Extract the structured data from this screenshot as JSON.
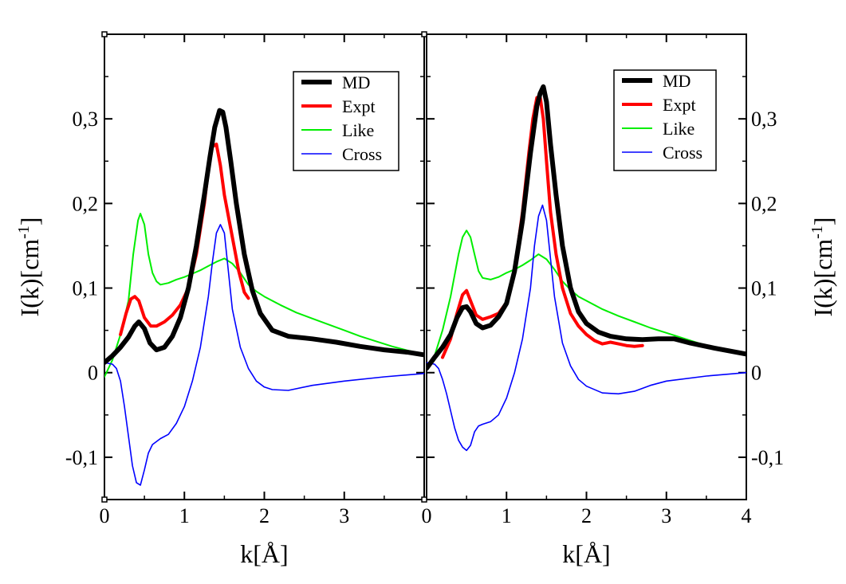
{
  "colors": {
    "MD": "#000000",
    "Expt": "#ff0000",
    "Like": "#00ee00",
    "Cross": "#0000ff"
  },
  "chart_data": [
    {
      "type": "line",
      "xlabel": "k[Å]",
      "ylabel": "I(k)[cm",
      "ylabel_sup": "-1",
      "xlim": [
        0,
        4
      ],
      "ylim": [
        -0.15,
        0.4
      ],
      "xticks": [
        "0",
        "1",
        "2",
        "3"
      ],
      "yticks": [
        "-0,1",
        "0",
        "0,1",
        "0,2",
        "0,3"
      ],
      "legend": [
        "MD",
        "Expt",
        "Like",
        "Cross"
      ],
      "series": [
        {
          "name": "MD",
          "x": [
            0,
            0.1,
            0.2,
            0.3,
            0.38,
            0.43,
            0.5,
            0.57,
            0.65,
            0.75,
            0.85,
            0.95,
            1.05,
            1.15,
            1.25,
            1.32,
            1.38,
            1.44,
            1.48,
            1.52,
            1.58,
            1.65,
            1.75,
            1.85,
            1.95,
            2.1,
            2.3,
            2.6,
            2.9,
            3.2,
            3.5,
            3.8,
            4.0
          ],
          "y": [
            0.012,
            0.02,
            0.03,
            0.042,
            0.055,
            0.06,
            0.052,
            0.035,
            0.027,
            0.03,
            0.043,
            0.065,
            0.1,
            0.15,
            0.21,
            0.255,
            0.29,
            0.31,
            0.308,
            0.29,
            0.25,
            0.2,
            0.14,
            0.097,
            0.07,
            0.05,
            0.043,
            0.04,
            0.036,
            0.031,
            0.027,
            0.024,
            0.021
          ]
        },
        {
          "name": "Expt",
          "x": [
            0.2,
            0.27,
            0.33,
            0.38,
            0.43,
            0.5,
            0.58,
            0.65,
            0.75,
            0.85,
            0.95,
            1.05,
            1.15,
            1.25,
            1.3,
            1.35,
            1.4,
            1.45,
            1.5,
            1.55,
            1.6,
            1.68,
            1.75,
            1.8
          ],
          "y": [
            0.045,
            0.07,
            0.087,
            0.09,
            0.085,
            0.065,
            0.055,
            0.055,
            0.06,
            0.068,
            0.08,
            0.1,
            0.14,
            0.2,
            0.24,
            0.267,
            0.27,
            0.245,
            0.21,
            0.185,
            0.16,
            0.12,
            0.095,
            0.088
          ]
        },
        {
          "name": "Like",
          "x": [
            0,
            0.1,
            0.2,
            0.3,
            0.36,
            0.42,
            0.45,
            0.5,
            0.55,
            0.6,
            0.65,
            0.7,
            0.8,
            0.9,
            1.0,
            1.1,
            1.2,
            1.3,
            1.4,
            1.5,
            1.6,
            1.7,
            1.8,
            1.9,
            2.0,
            2.2,
            2.4,
            2.6,
            2.8,
            3.0,
            3.2,
            3.4,
            3.6,
            3.8,
            4.0
          ],
          "y": [
            -0.005,
            0.015,
            0.045,
            0.085,
            0.14,
            0.18,
            0.188,
            0.175,
            0.14,
            0.118,
            0.108,
            0.104,
            0.106,
            0.11,
            0.113,
            0.117,
            0.121,
            0.126,
            0.131,
            0.135,
            0.129,
            0.118,
            0.104,
            0.096,
            0.09,
            0.08,
            0.071,
            0.064,
            0.057,
            0.05,
            0.043,
            0.037,
            0.031,
            0.026,
            0.022
          ]
        },
        {
          "name": "Cross",
          "x": [
            0,
            0.1,
            0.15,
            0.2,
            0.25,
            0.3,
            0.35,
            0.4,
            0.45,
            0.5,
            0.55,
            0.6,
            0.7,
            0.8,
            0.9,
            1.0,
            1.1,
            1.2,
            1.3,
            1.35,
            1.4,
            1.45,
            1.5,
            1.55,
            1.6,
            1.7,
            1.8,
            1.9,
            2.0,
            2.1,
            2.3,
            2.6,
            3.0,
            3.5,
            4.0
          ],
          "y": [
            0.012,
            0.01,
            0.005,
            -0.01,
            -0.04,
            -0.075,
            -0.11,
            -0.13,
            -0.133,
            -0.115,
            -0.095,
            -0.085,
            -0.078,
            -0.073,
            -0.06,
            -0.04,
            -0.01,
            0.03,
            0.09,
            0.13,
            0.165,
            0.175,
            0.165,
            0.12,
            0.075,
            0.03,
            0.005,
            -0.01,
            -0.017,
            -0.02,
            -0.021,
            -0.015,
            -0.01,
            -0.005,
            -0.001
          ]
        }
      ]
    },
    {
      "type": "line",
      "xlabel": "k[Å]",
      "ylabel": "I(k)[cm",
      "ylabel_sup": "-1",
      "xlim": [
        0,
        4
      ],
      "ylim": [
        -0.15,
        0.4
      ],
      "xticks": [
        "0",
        "1",
        "2",
        "3",
        "4"
      ],
      "yticks": [
        "-0,1",
        "0",
        "0,1",
        "0,2",
        "0,3"
      ],
      "legend": [
        "MD",
        "Expt",
        "Like",
        "Cross"
      ],
      "series": [
        {
          "name": "MD",
          "x": [
            0,
            0.1,
            0.2,
            0.3,
            0.38,
            0.45,
            0.5,
            0.55,
            0.62,
            0.7,
            0.8,
            0.9,
            1.0,
            1.1,
            1.2,
            1.3,
            1.38,
            1.42,
            1.46,
            1.5,
            1.55,
            1.62,
            1.7,
            1.8,
            1.9,
            2.0,
            2.15,
            2.3,
            2.5,
            2.7,
            2.9,
            3.1,
            3.3,
            3.6,
            4.0
          ],
          "y": [
            0.005,
            0.018,
            0.03,
            0.045,
            0.065,
            0.077,
            0.078,
            0.072,
            0.058,
            0.053,
            0.056,
            0.066,
            0.082,
            0.12,
            0.18,
            0.26,
            0.315,
            0.33,
            0.338,
            0.32,
            0.27,
            0.21,
            0.15,
            0.1,
            0.072,
            0.058,
            0.048,
            0.043,
            0.04,
            0.039,
            0.04,
            0.04,
            0.035,
            0.029,
            0.022
          ]
        },
        {
          "name": "Expt",
          "x": [
            0.2,
            0.3,
            0.38,
            0.45,
            0.5,
            0.55,
            0.62,
            0.7,
            0.8,
            0.9,
            1.0,
            1.1,
            1.2,
            1.28,
            1.33,
            1.38,
            1.42,
            1.46,
            1.5,
            1.55,
            1.62,
            1.7,
            1.8,
            1.9,
            2.0,
            2.1,
            2.2,
            2.3,
            2.4,
            2.5,
            2.6,
            2.7
          ],
          "y": [
            0.018,
            0.04,
            0.07,
            0.092,
            0.097,
            0.085,
            0.068,
            0.063,
            0.066,
            0.07,
            0.083,
            0.12,
            0.19,
            0.26,
            0.3,
            0.325,
            0.326,
            0.3,
            0.25,
            0.19,
            0.14,
            0.1,
            0.07,
            0.055,
            0.045,
            0.038,
            0.034,
            0.036,
            0.034,
            0.032,
            0.031,
            0.032
          ]
        },
        {
          "name": "Like",
          "x": [
            0,
            0.1,
            0.2,
            0.3,
            0.4,
            0.45,
            0.5,
            0.55,
            0.6,
            0.65,
            0.7,
            0.8,
            0.9,
            1.0,
            1.1,
            1.2,
            1.3,
            1.4,
            1.5,
            1.6,
            1.7,
            1.8,
            1.9,
            2.0,
            2.2,
            2.4,
            2.6,
            2.8,
            3.0,
            3.2,
            3.4,
            3.6,
            3.8,
            4.0
          ],
          "y": [
            0.005,
            0.02,
            0.05,
            0.09,
            0.14,
            0.16,
            0.168,
            0.16,
            0.14,
            0.12,
            0.112,
            0.11,
            0.113,
            0.118,
            0.122,
            0.127,
            0.133,
            0.14,
            0.134,
            0.122,
            0.108,
            0.098,
            0.09,
            0.085,
            0.075,
            0.067,
            0.06,
            0.053,
            0.047,
            0.041,
            0.035,
            0.03,
            0.026,
            0.023
          ]
        },
        {
          "name": "Cross",
          "x": [
            0,
            0.1,
            0.15,
            0.2,
            0.25,
            0.3,
            0.35,
            0.4,
            0.45,
            0.5,
            0.55,
            0.6,
            0.65,
            0.7,
            0.8,
            0.9,
            1.0,
            1.1,
            1.2,
            1.3,
            1.35,
            1.4,
            1.45,
            1.5,
            1.55,
            1.6,
            1.7,
            1.8,
            1.9,
            2.0,
            2.2,
            2.4,
            2.6,
            2.8,
            3.0,
            3.5,
            4.0
          ],
          "y": [
            0.012,
            0.01,
            0.005,
            -0.008,
            -0.025,
            -0.045,
            -0.065,
            -0.08,
            -0.088,
            -0.092,
            -0.086,
            -0.07,
            -0.063,
            -0.061,
            -0.058,
            -0.05,
            -0.03,
            0.0,
            0.04,
            0.1,
            0.15,
            0.185,
            0.198,
            0.18,
            0.135,
            0.09,
            0.035,
            0.008,
            -0.008,
            -0.016,
            -0.024,
            -0.025,
            -0.022,
            -0.015,
            -0.01,
            -0.004,
            0.0
          ]
        }
      ]
    }
  ]
}
